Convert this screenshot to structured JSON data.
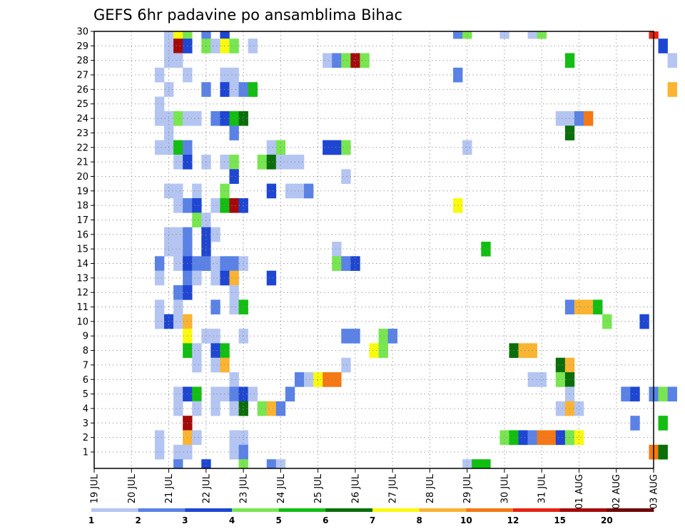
{
  "chart_data": {
    "type": "heatmap",
    "title": "GEFS 6hr padavine po ansamblima Bihac",
    "xlabel": "",
    "ylabel": "",
    "x_ticks": [
      "19 JUL",
      "20 JUL",
      "21 JUL",
      "22 JUL",
      "23 JUL",
      "24 JUL",
      "25 JUL",
      "26 JUL",
      "27 JUL",
      "28 JUL",
      "29 JUL",
      "30 JUL",
      "31 JUL",
      "01 AUG",
      "02 AUG",
      "03 AUG"
    ],
    "y_ticks": [
      1,
      2,
      3,
      4,
      5,
      6,
      7,
      8,
      9,
      10,
      11,
      12,
      13,
      14,
      15,
      16,
      17,
      18,
      19,
      20,
      21,
      22,
      23,
      24,
      25,
      26,
      27,
      28,
      29,
      30
    ],
    "grid": true,
    "legend": {
      "placement": "bottom",
      "levels": [
        1,
        2,
        3,
        4,
        5,
        6,
        7,
        8,
        10,
        12,
        15,
        20
      ],
      "colors": [
        "#b4c5f2",
        "#5a82e6",
        "#1e46d2",
        "#78e650",
        "#12be12",
        "#0a6e0a",
        "#fafa0f",
        "#fab432",
        "#f57814",
        "#e62314",
        "#a50a0a",
        "#6e0505"
      ]
    },
    "cells": [
      {
        "member": 30,
        "time": 2.0,
        "c": 0
      },
      {
        "member": 30,
        "time": 2.25,
        "c": 6
      },
      {
        "member": 30,
        "time": 2.5,
        "c": 3
      },
      {
        "member": 30,
        "time": 3.0,
        "c": 1
      },
      {
        "member": 30,
        "time": 3.5,
        "c": 2
      },
      {
        "member": 30,
        "time": 9.75,
        "c": 1
      },
      {
        "member": 30,
        "time": 10.0,
        "c": 3
      },
      {
        "member": 30,
        "time": 11.0,
        "c": 0
      },
      {
        "member": 30,
        "time": 11.75,
        "c": 0
      },
      {
        "member": 30,
        "time": 12.0,
        "c": 3
      },
      {
        "member": 30,
        "time": 15.0,
        "c": 9
      },
      {
        "member": 29,
        "time": 2.0,
        "c": 0
      },
      {
        "member": 29,
        "time": 2.25,
        "c": 10
      },
      {
        "member": 29,
        "time": 2.5,
        "c": 2
      },
      {
        "member": 29,
        "time": 3.0,
        "c": 3
      },
      {
        "member": 29,
        "time": 3.25,
        "c": 0
      },
      {
        "member": 29,
        "time": 3.5,
        "c": 6
      },
      {
        "member": 29,
        "time": 3.75,
        "c": 3
      },
      {
        "member": 29,
        "time": 4.25,
        "c": 0
      },
      {
        "member": 29,
        "time": 15.25,
        "c": 2
      },
      {
        "member": 28,
        "time": 2.0,
        "c": 0
      },
      {
        "member": 28,
        "time": 2.25,
        "c": 0
      },
      {
        "member": 28,
        "time": 6.25,
        "c": 0
      },
      {
        "member": 28,
        "time": 6.5,
        "c": 1
      },
      {
        "member": 28,
        "time": 6.75,
        "c": 3
      },
      {
        "member": 28,
        "time": 7.0,
        "c": 10
      },
      {
        "member": 28,
        "time": 7.25,
        "c": 3
      },
      {
        "member": 28,
        "time": 12.75,
        "c": 4
      },
      {
        "member": 28,
        "time": 15.5,
        "c": 0
      },
      {
        "member": 27,
        "time": 1.75,
        "c": 0
      },
      {
        "member": 27,
        "time": 2.5,
        "c": 0
      },
      {
        "member": 27,
        "time": 3.5,
        "c": 0
      },
      {
        "member": 27,
        "time": 3.75,
        "c": 0
      },
      {
        "member": 27,
        "time": 9.75,
        "c": 1
      },
      {
        "member": 26,
        "time": 2.0,
        "c": 0
      },
      {
        "member": 26,
        "time": 3.0,
        "c": 1
      },
      {
        "member": 26,
        "time": 3.5,
        "c": 2
      },
      {
        "member": 26,
        "time": 3.75,
        "c": 0
      },
      {
        "member": 26,
        "time": 4.0,
        "c": 1
      },
      {
        "member": 26,
        "time": 4.25,
        "c": 4
      },
      {
        "member": 26,
        "time": 15.5,
        "c": 7
      },
      {
        "member": 25,
        "time": 1.75,
        "c": 0
      },
      {
        "member": 24,
        "time": 1.75,
        "c": 0
      },
      {
        "member": 24,
        "time": 2.0,
        "c": 0
      },
      {
        "member": 24,
        "time": 2.25,
        "c": 3
      },
      {
        "member": 24,
        "time": 2.5,
        "c": 0
      },
      {
        "member": 24,
        "time": 2.75,
        "c": 0
      },
      {
        "member": 24,
        "time": 3.25,
        "c": 1
      },
      {
        "member": 24,
        "time": 3.5,
        "c": 2
      },
      {
        "member": 24,
        "time": 3.75,
        "c": 4
      },
      {
        "member": 24,
        "time": 4.0,
        "c": 5
      },
      {
        "member": 24,
        "time": 12.5,
        "c": 0
      },
      {
        "member": 24,
        "time": 12.75,
        "c": 0
      },
      {
        "member": 24,
        "time": 13.0,
        "c": 1
      },
      {
        "member": 24,
        "time": 13.25,
        "c": 8
      },
      {
        "member": 23,
        "time": 2.0,
        "c": 0
      },
      {
        "member": 23,
        "time": 3.75,
        "c": 1
      },
      {
        "member": 23,
        "time": 12.75,
        "c": 5
      },
      {
        "member": 22,
        "time": 1.75,
        "c": 0
      },
      {
        "member": 22,
        "time": 2.0,
        "c": 0
      },
      {
        "member": 22,
        "time": 2.25,
        "c": 4
      },
      {
        "member": 22,
        "time": 2.5,
        "c": 1
      },
      {
        "member": 22,
        "time": 4.75,
        "c": 0
      },
      {
        "member": 22,
        "time": 5.0,
        "c": 3
      },
      {
        "member": 22,
        "time": 6.25,
        "c": 2
      },
      {
        "member": 22,
        "time": 6.5,
        "c": 2
      },
      {
        "member": 22,
        "time": 6.75,
        "c": 3
      },
      {
        "member": 22,
        "time": 10.0,
        "c": 0
      },
      {
        "member": 21,
        "time": 2.25,
        "c": 0
      },
      {
        "member": 21,
        "time": 2.5,
        "c": 2
      },
      {
        "member": 21,
        "time": 3.0,
        "c": 0
      },
      {
        "member": 21,
        "time": 3.5,
        "c": 0
      },
      {
        "member": 21,
        "time": 3.75,
        "c": 3
      },
      {
        "member": 21,
        "time": 4.5,
        "c": 3
      },
      {
        "member": 21,
        "time": 4.75,
        "c": 5
      },
      {
        "member": 21,
        "time": 5.0,
        "c": 0
      },
      {
        "member": 21,
        "time": 5.25,
        "c": 0
      },
      {
        "member": 21,
        "time": 5.5,
        "c": 0
      },
      {
        "member": 20,
        "time": 3.75,
        "c": 2
      },
      {
        "member": 20,
        "time": 6.75,
        "c": 0
      },
      {
        "member": 19,
        "time": 2.0,
        "c": 0
      },
      {
        "member": 19,
        "time": 2.25,
        "c": 0
      },
      {
        "member": 19,
        "time": 2.75,
        "c": 0
      },
      {
        "member": 19,
        "time": 3.5,
        "c": 3
      },
      {
        "member": 19,
        "time": 4.75,
        "c": 2
      },
      {
        "member": 19,
        "time": 5.25,
        "c": 0
      },
      {
        "member": 19,
        "time": 5.5,
        "c": 0
      },
      {
        "member": 19,
        "time": 5.75,
        "c": 1
      },
      {
        "member": 18,
        "time": 2.25,
        "c": 0
      },
      {
        "member": 18,
        "time": 2.5,
        "c": 1
      },
      {
        "member": 18,
        "time": 2.75,
        "c": 2
      },
      {
        "member": 18,
        "time": 3.25,
        "c": 0
      },
      {
        "member": 18,
        "time": 3.5,
        "c": 4
      },
      {
        "member": 18,
        "time": 3.75,
        "c": 10
      },
      {
        "member": 18,
        "time": 4.0,
        "c": 2
      },
      {
        "member": 18,
        "time": 9.75,
        "c": 6
      },
      {
        "member": 17,
        "time": 2.75,
        "c": 3
      },
      {
        "member": 17,
        "time": 3.0,
        "c": 0
      },
      {
        "member": 16,
        "time": 2.0,
        "c": 0
      },
      {
        "member": 16,
        "time": 2.25,
        "c": 0
      },
      {
        "member": 16,
        "time": 2.5,
        "c": 1
      },
      {
        "member": 16,
        "time": 3.0,
        "c": 2
      },
      {
        "member": 16,
        "time": 3.25,
        "c": 0
      },
      {
        "member": 15,
        "time": 2.0,
        "c": 0
      },
      {
        "member": 15,
        "time": 2.25,
        "c": 0
      },
      {
        "member": 15,
        "time": 2.5,
        "c": 1
      },
      {
        "member": 15,
        "time": 3.0,
        "c": 2
      },
      {
        "member": 15,
        "time": 6.5,
        "c": 0
      },
      {
        "member": 15,
        "time": 10.5,
        "c": 4
      },
      {
        "member": 14,
        "time": 1.75,
        "c": 1
      },
      {
        "member": 14,
        "time": 2.25,
        "c": 0
      },
      {
        "member": 14,
        "time": 2.5,
        "c": 2
      },
      {
        "member": 14,
        "time": 2.75,
        "c": 1
      },
      {
        "member": 14,
        "time": 3.0,
        "c": 1
      },
      {
        "member": 14,
        "time": 3.25,
        "c": 0
      },
      {
        "member": 14,
        "time": 3.5,
        "c": 1
      },
      {
        "member": 14,
        "time": 3.75,
        "c": 1
      },
      {
        "member": 14,
        "time": 4.0,
        "c": 0
      },
      {
        "member": 14,
        "time": 6.5,
        "c": 3
      },
      {
        "member": 14,
        "time": 6.75,
        "c": 1
      },
      {
        "member": 14,
        "time": 7.0,
        "c": 2
      },
      {
        "member": 13,
        "time": 1.75,
        "c": 0
      },
      {
        "member": 13,
        "time": 2.5,
        "c": 1
      },
      {
        "member": 13,
        "time": 2.75,
        "c": 0
      },
      {
        "member": 13,
        "time": 3.25,
        "c": 0
      },
      {
        "member": 13,
        "time": 3.5,
        "c": 2
      },
      {
        "member": 13,
        "time": 3.75,
        "c": 7
      },
      {
        "member": 13,
        "time": 4.75,
        "c": 2
      },
      {
        "member": 12,
        "time": 2.25,
        "c": 1
      },
      {
        "member": 12,
        "time": 2.5,
        "c": 2
      },
      {
        "member": 12,
        "time": 3.75,
        "c": 0
      },
      {
        "member": 11,
        "time": 1.75,
        "c": 0
      },
      {
        "member": 11,
        "time": 2.25,
        "c": 0
      },
      {
        "member": 11,
        "time": 3.25,
        "c": 1
      },
      {
        "member": 11,
        "time": 3.75,
        "c": 0
      },
      {
        "member": 11,
        "time": 4.0,
        "c": 4
      },
      {
        "member": 11,
        "time": 12.75,
        "c": 1
      },
      {
        "member": 11,
        "time": 13.0,
        "c": 7
      },
      {
        "member": 11,
        "time": 13.25,
        "c": 7
      },
      {
        "member": 11,
        "time": 13.5,
        "c": 4
      },
      {
        "member": 10,
        "time": 1.75,
        "c": 0
      },
      {
        "member": 10,
        "time": 2.0,
        "c": 2
      },
      {
        "member": 10,
        "time": 2.25,
        "c": 0
      },
      {
        "member": 10,
        "time": 2.5,
        "c": 7
      },
      {
        "member": 10,
        "time": 13.75,
        "c": 3
      },
      {
        "member": 10,
        "time": 14.75,
        "c": 2
      },
      {
        "member": 9,
        "time": 2.5,
        "c": 6
      },
      {
        "member": 9,
        "time": 3.0,
        "c": 0
      },
      {
        "member": 9,
        "time": 3.25,
        "c": 0
      },
      {
        "member": 9,
        "time": 4.0,
        "c": 0
      },
      {
        "member": 9,
        "time": 6.75,
        "c": 1
      },
      {
        "member": 9,
        "time": 7.0,
        "c": 1
      },
      {
        "member": 9,
        "time": 7.75,
        "c": 3
      },
      {
        "member": 9,
        "time": 8.0,
        "c": 1
      },
      {
        "member": 8,
        "time": 2.5,
        "c": 4
      },
      {
        "member": 8,
        "time": 2.75,
        "c": 0
      },
      {
        "member": 8,
        "time": 3.25,
        "c": 2
      },
      {
        "member": 8,
        "time": 3.5,
        "c": 4
      },
      {
        "member": 8,
        "time": 7.5,
        "c": 6
      },
      {
        "member": 8,
        "time": 7.75,
        "c": 3
      },
      {
        "member": 8,
        "time": 11.25,
        "c": 5
      },
      {
        "member": 8,
        "time": 11.5,
        "c": 7
      },
      {
        "member": 8,
        "time": 11.75,
        "c": 7
      },
      {
        "member": 7,
        "time": 2.75,
        "c": 0
      },
      {
        "member": 7,
        "time": 3.25,
        "c": 0
      },
      {
        "member": 7,
        "time": 3.5,
        "c": 7
      },
      {
        "member": 7,
        "time": 6.75,
        "c": 0
      },
      {
        "member": 7,
        "time": 12.5,
        "c": 5
      },
      {
        "member": 7,
        "time": 12.75,
        "c": 7
      },
      {
        "member": 6,
        "time": 3.75,
        "c": 0
      },
      {
        "member": 6,
        "time": 5.5,
        "c": 1
      },
      {
        "member": 6,
        "time": 5.75,
        "c": 0
      },
      {
        "member": 6,
        "time": 6.0,
        "c": 6
      },
      {
        "member": 6,
        "time": 6.25,
        "c": 8
      },
      {
        "member": 6,
        "time": 6.5,
        "c": 8
      },
      {
        "member": 6,
        "time": 11.75,
        "c": 0
      },
      {
        "member": 6,
        "time": 12.0,
        "c": 0
      },
      {
        "member": 6,
        "time": 12.5,
        "c": 3
      },
      {
        "member": 6,
        "time": 12.75,
        "c": 5
      },
      {
        "member": 5,
        "time": 2.25,
        "c": 0
      },
      {
        "member": 5,
        "time": 2.5,
        "c": 2
      },
      {
        "member": 5,
        "time": 2.75,
        "c": 4
      },
      {
        "member": 5,
        "time": 3.25,
        "c": 0
      },
      {
        "member": 5,
        "time": 3.5,
        "c": 0
      },
      {
        "member": 5,
        "time": 3.75,
        "c": 1
      },
      {
        "member": 5,
        "time": 4.0,
        "c": 2
      },
      {
        "member": 5,
        "time": 4.25,
        "c": 0
      },
      {
        "member": 5,
        "time": 5.25,
        "c": 1
      },
      {
        "member": 5,
        "time": 12.75,
        "c": 0
      },
      {
        "member": 5,
        "time": 14.25,
        "c": 1
      },
      {
        "member": 5,
        "time": 14.5,
        "c": 2
      },
      {
        "member": 5,
        "time": 15.0,
        "c": 1
      },
      {
        "member": 5,
        "time": 15.25,
        "c": 3
      },
      {
        "member": 5,
        "time": 15.5,
        "c": 1
      },
      {
        "member": 4,
        "time": 2.25,
        "c": 0
      },
      {
        "member": 4,
        "time": 2.75,
        "c": 0
      },
      {
        "member": 4,
        "time": 3.25,
        "c": 0
      },
      {
        "member": 4,
        "time": 3.75,
        "c": 0
      },
      {
        "member": 4,
        "time": 4.0,
        "c": 5
      },
      {
        "member": 4,
        "time": 4.5,
        "c": 3
      },
      {
        "member": 4,
        "time": 4.75,
        "c": 7
      },
      {
        "member": 4,
        "time": 5.0,
        "c": 1
      },
      {
        "member": 4,
        "time": 12.5,
        "c": 0
      },
      {
        "member": 4,
        "time": 12.75,
        "c": 7
      },
      {
        "member": 4,
        "time": 13.0,
        "c": 0
      },
      {
        "member": 3,
        "time": 2.5,
        "c": 10
      },
      {
        "member": 3,
        "time": 14.5,
        "c": 1
      },
      {
        "member": 3,
        "time": 15.25,
        "c": 4
      },
      {
        "member": 2,
        "time": 1.75,
        "c": 0
      },
      {
        "member": 2,
        "time": 2.5,
        "c": 7
      },
      {
        "member": 2,
        "time": 2.75,
        "c": 0
      },
      {
        "member": 2,
        "time": 3.75,
        "c": 0
      },
      {
        "member": 2,
        "time": 4.0,
        "c": 0
      },
      {
        "member": 2,
        "time": 11.0,
        "c": 3
      },
      {
        "member": 2,
        "time": 11.25,
        "c": 4
      },
      {
        "member": 2,
        "time": 11.5,
        "c": 2
      },
      {
        "member": 2,
        "time": 11.75,
        "c": 1
      },
      {
        "member": 2,
        "time": 12.0,
        "c": 8
      },
      {
        "member": 2,
        "time": 12.25,
        "c": 8
      },
      {
        "member": 2,
        "time": 12.5,
        "c": 2
      },
      {
        "member": 2,
        "time": 12.75,
        "c": 3
      },
      {
        "member": 2,
        "time": 13.0,
        "c": 6
      },
      {
        "member": 1,
        "time": 1.75,
        "c": 0
      },
      {
        "member": 1,
        "time": 2.25,
        "c": 0
      },
      {
        "member": 1,
        "time": 2.5,
        "c": 0
      },
      {
        "member": 1,
        "time": 3.75,
        "c": 0
      },
      {
        "member": 1,
        "time": 4.0,
        "c": 1
      },
      {
        "member": 1,
        "time": 15.0,
        "c": 8
      },
      {
        "member": 1,
        "time": 15.25,
        "c": 5
      },
      {
        "member": 0,
        "time": 2.25,
        "c": 1
      },
      {
        "member": 0,
        "time": 3.0,
        "c": 2
      },
      {
        "member": 0,
        "time": 4.0,
        "c": 3
      },
      {
        "member": 0,
        "time": 4.75,
        "c": 1
      },
      {
        "member": 0,
        "time": 5.0,
        "c": 0
      },
      {
        "member": 0,
        "time": 10.0,
        "c": 0
      },
      {
        "member": 0,
        "time": 10.25,
        "c": 4
      },
      {
        "member": 0,
        "time": 10.5,
        "c": 4
      }
    ]
  }
}
